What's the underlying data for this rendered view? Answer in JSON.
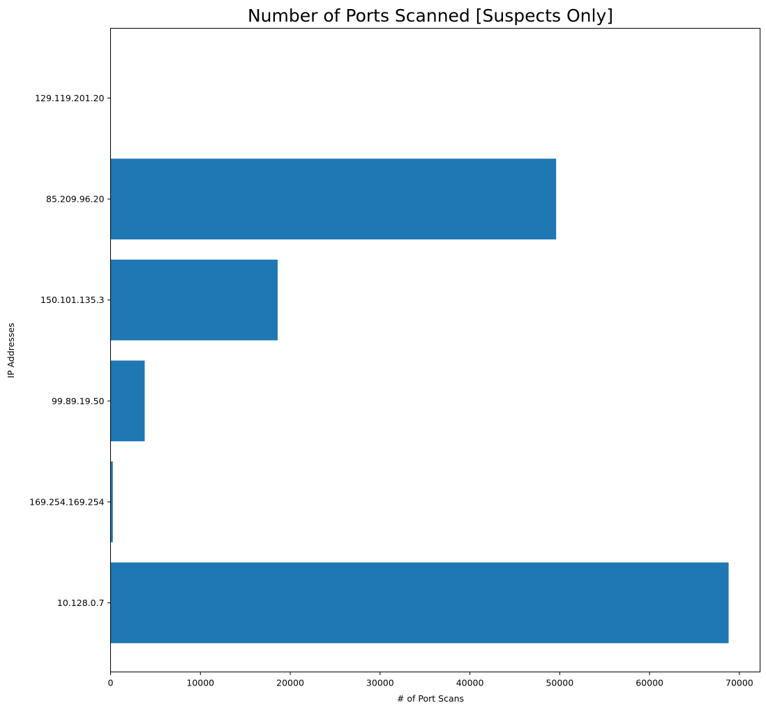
{
  "chart_data": {
    "type": "bar",
    "orientation": "horizontal",
    "title": "Number of Ports Scanned [Suspects Only]",
    "xlabel": "# of Port Scans",
    "ylabel": "IP Addresses",
    "categories": [
      "10.128.0.7",
      "169.254.169.254",
      "99.89.19.50",
      "150.101.135.3",
      "85.209.96.20",
      "129.119.201.20"
    ],
    "values": [
      68800,
      250,
      3800,
      18600,
      49600,
      0
    ],
    "xlim": [
      0,
      72300
    ],
    "xticks": [
      0,
      10000,
      20000,
      30000,
      40000,
      50000,
      60000,
      70000
    ],
    "bar_color": "#1f77b4",
    "grid": false,
    "legend": "none"
  }
}
